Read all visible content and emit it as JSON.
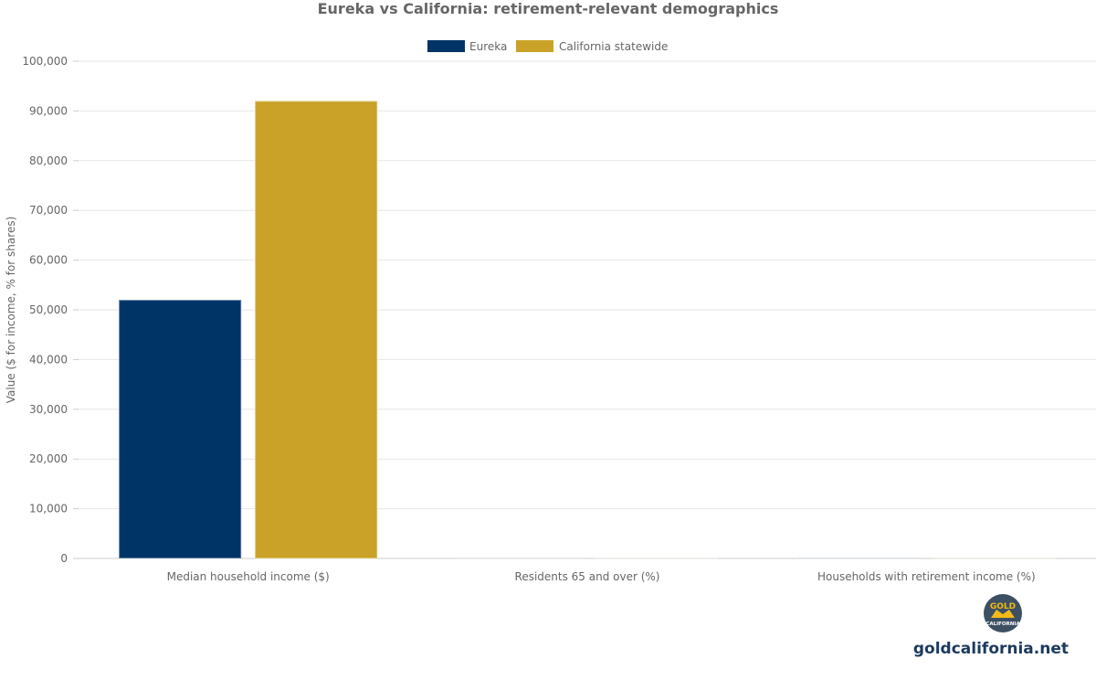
{
  "chart_data": {
    "type": "bar",
    "title": "Eureka vs California: retirement-relevant demographics",
    "ylabel": "Value ($ for income, % for shares)",
    "xlabel": "",
    "categories": [
      "Median household income ($)",
      "Residents 65 and over (%)",
      "Households with retirement income (%)"
    ],
    "series": [
      {
        "name": "Eureka",
        "color": "#003366",
        "values": [
          52000,
          18,
          30
        ]
      },
      {
        "name": "California statewide",
        "color": "#c9a227",
        "values": [
          92000,
          16,
          25
        ]
      }
    ],
    "ylim": [
      0,
      100000
    ],
    "yticks": [
      0,
      10000,
      20000,
      30000,
      40000,
      50000,
      60000,
      70000,
      80000,
      90000,
      100000
    ],
    "grid": true,
    "legend_position": "top-center"
  },
  "brand": {
    "site": "goldcalifornia.net",
    "logo_top": "GOLD",
    "logo_bottom": "CALIFORNIA",
    "logo_color": "#3d4f63"
  }
}
